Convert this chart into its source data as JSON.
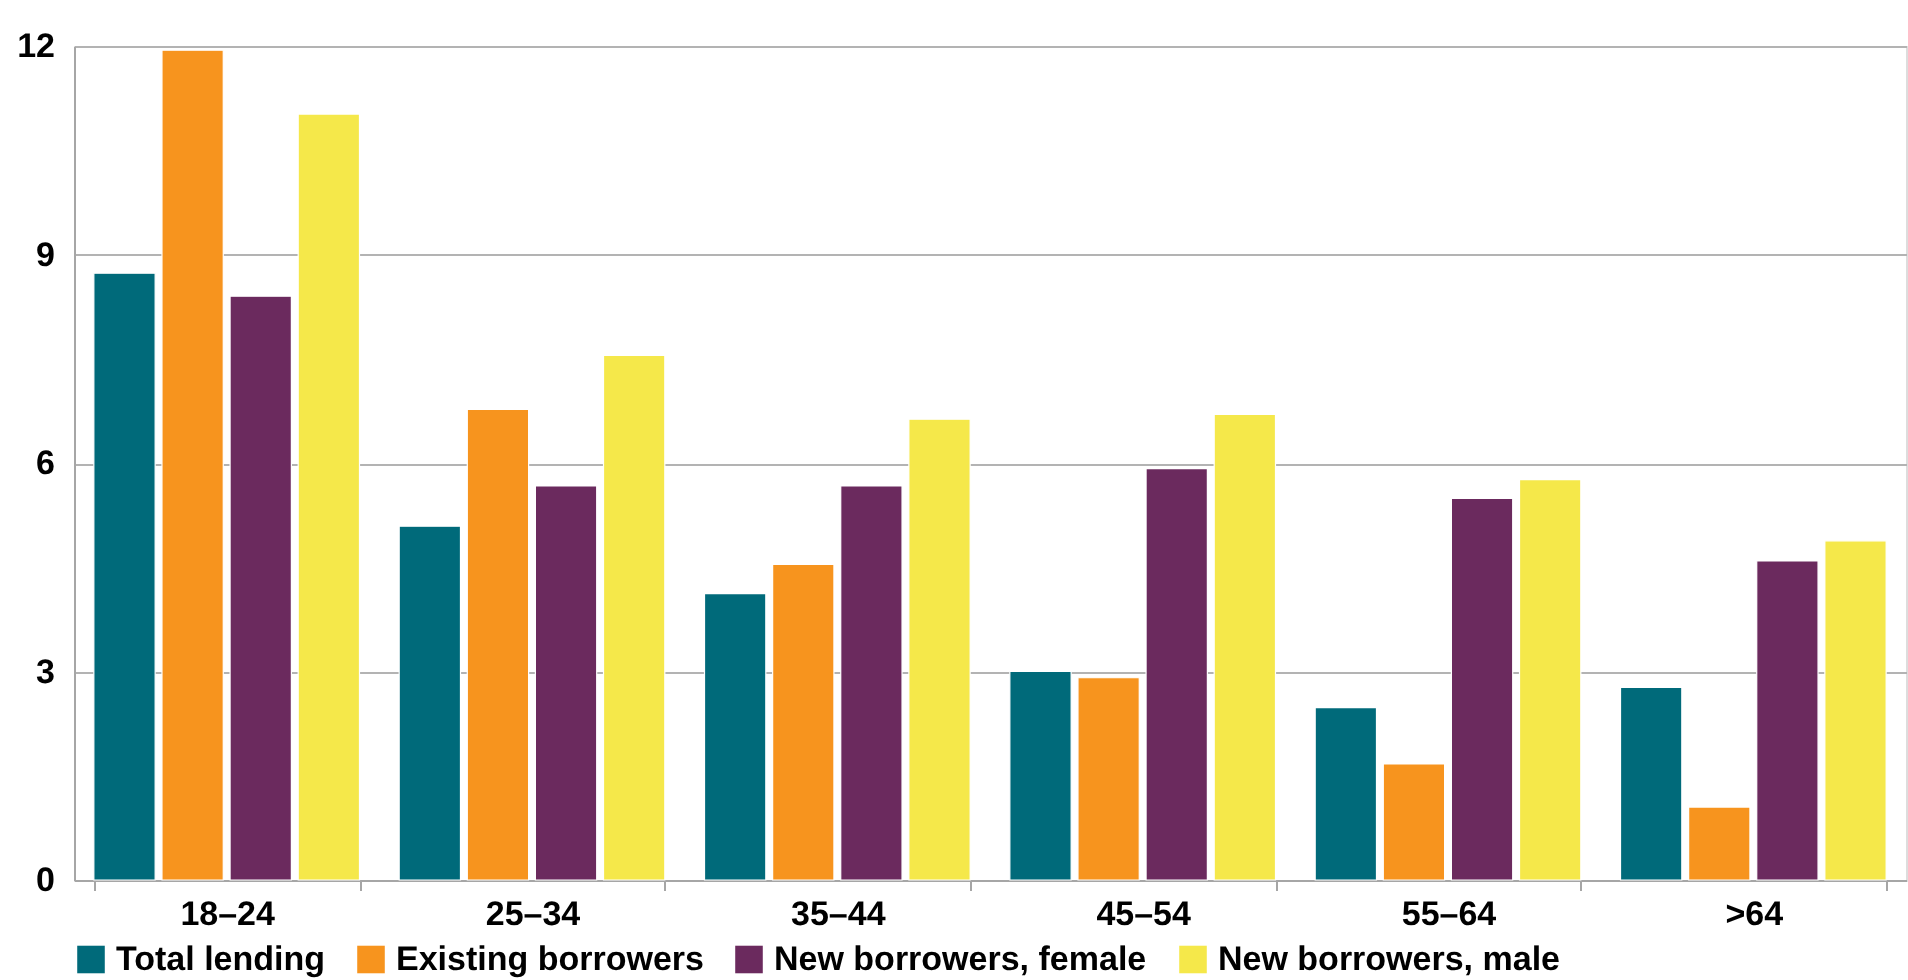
{
  "chart_data": {
    "type": "bar",
    "categories": [
      "18–24",
      "25–34",
      "35–44",
      "45–54",
      "55–64",
      ">64"
    ],
    "series": [
      {
        "name": "Total lending",
        "color": "#006a7a",
        "values": [
          8.73,
          5.09,
          4.12,
          3.0,
          2.48,
          2.77
        ]
      },
      {
        "name": "Existing borrowers",
        "color": "#f7941e",
        "values": [
          11.94,
          6.77,
          4.54,
          2.91,
          1.67,
          1.05
        ]
      },
      {
        "name": "New borrowers, female",
        "color": "#6b2a5e",
        "values": [
          8.4,
          5.67,
          5.67,
          5.92,
          5.49,
          4.59
        ]
      },
      {
        "name": "New borrowers, male",
        "color": "#f5e84a",
        "values": [
          11.02,
          7.55,
          6.63,
          6.7,
          5.76,
          4.88
        ]
      }
    ],
    "ylim": [
      0,
      12
    ],
    "yticks": [
      0,
      3,
      6,
      9,
      12
    ],
    "grid": "y",
    "legend": "bottom"
  }
}
